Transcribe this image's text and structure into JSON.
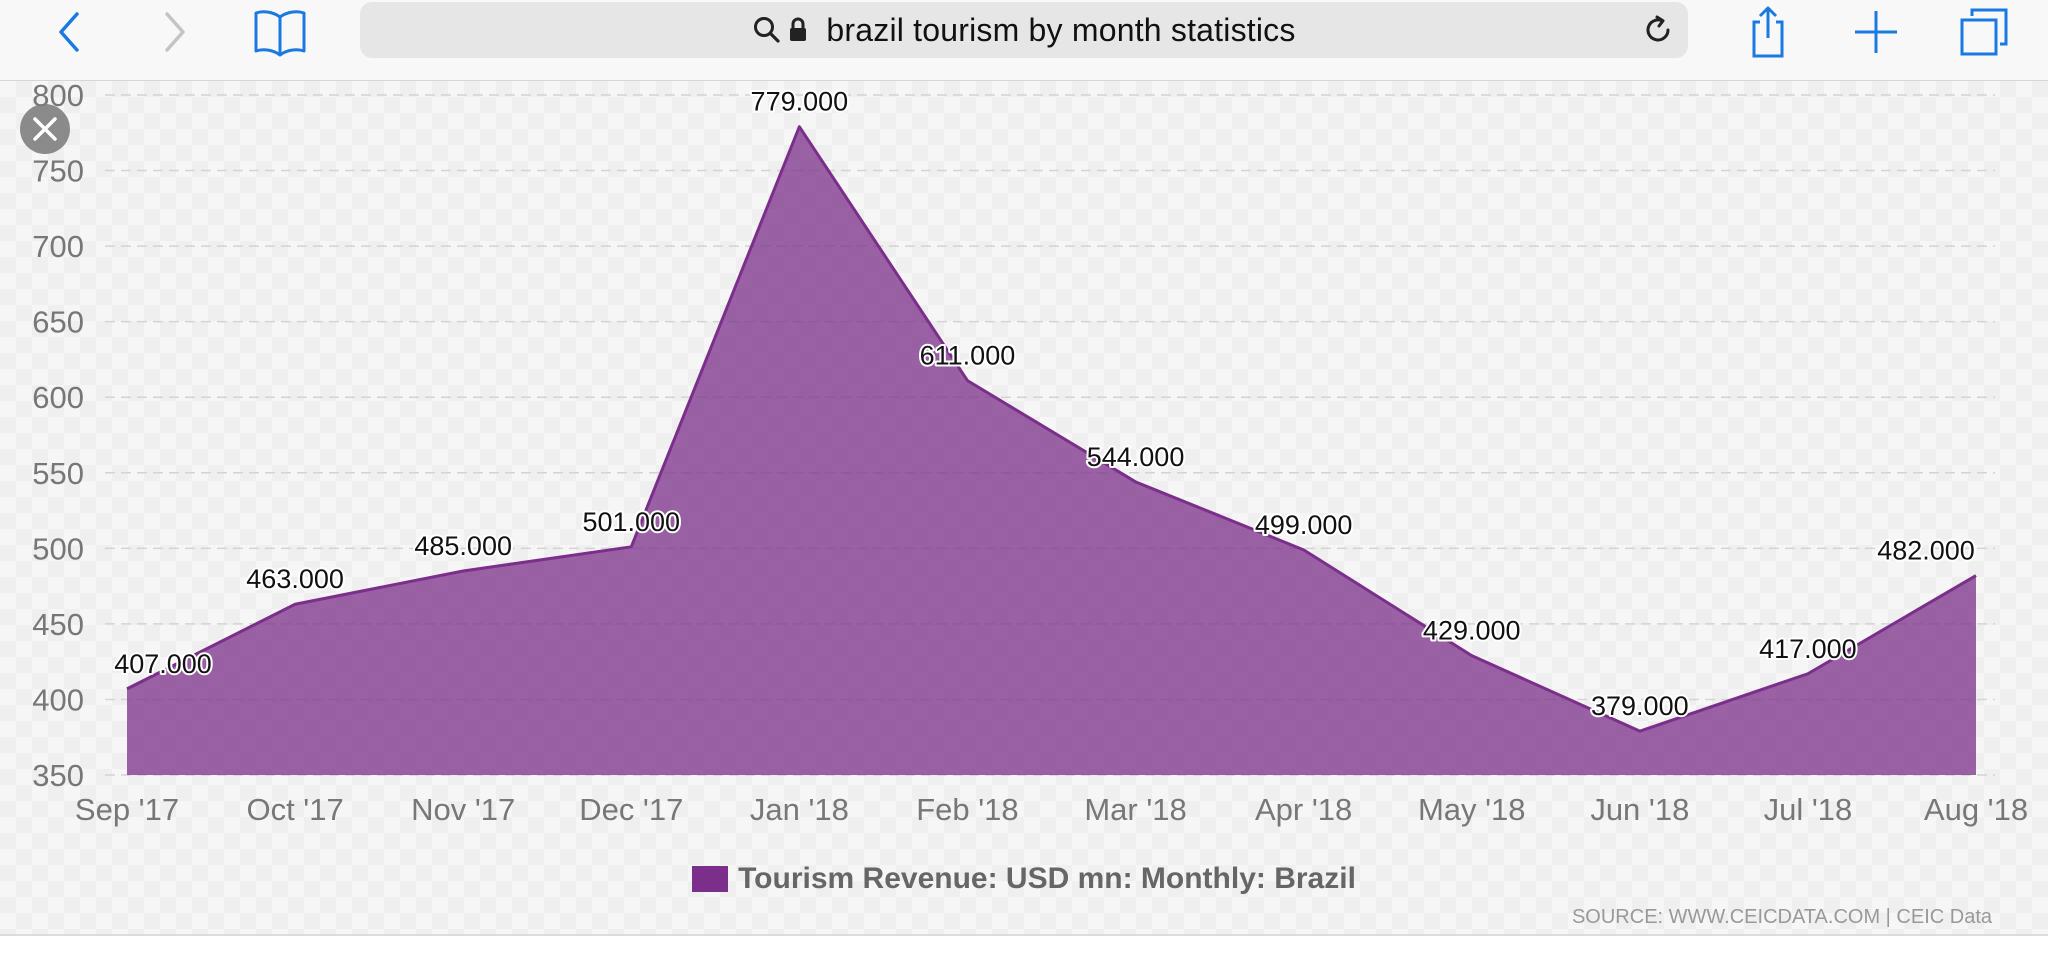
{
  "browser": {
    "address_text": "brazil tourism by month statistics",
    "icons": {
      "back": "chevron-left-icon",
      "forward": "chevron-right-icon",
      "bookmarks": "book-icon",
      "search": "search-icon",
      "lock": "lock-icon",
      "reload": "reload-icon",
      "share": "share-icon",
      "new_tab": "plus-icon",
      "tabs": "tabs-icon",
      "close": "close-icon"
    },
    "accent_color": "#1a7ae0"
  },
  "chart_data": {
    "type": "area",
    "categories": [
      "Sep '17",
      "Oct '17",
      "Nov '17",
      "Dec '17",
      "Jan '18",
      "Feb '18",
      "Mar '18",
      "Apr '18",
      "May '18",
      "Jun '18",
      "Jul '18",
      "Aug '18"
    ],
    "series": [
      {
        "name": "Tourism Revenue: USD mn: Monthly: Brazil",
        "values": [
          407.0,
          463.0,
          485.0,
          501.0,
          779.0,
          611.0,
          544.0,
          499.0,
          429.0,
          379.0,
          417.0,
          482.0
        ],
        "labels": [
          "407.000",
          "463.000",
          "485.000",
          "501.000",
          "779.000",
          "611.000",
          "544.000",
          "499.000",
          "429.000",
          "379.000",
          "417.000",
          "482.000"
        ],
        "color": "#7b2f8a"
      }
    ],
    "y_ticks": [
      "350",
      "400",
      "450",
      "500",
      "550",
      "600",
      "650",
      "700",
      "750",
      "800"
    ],
    "ylim": [
      350,
      800
    ],
    "grid": true,
    "legend_position": "bottom-center",
    "source": "SOURCE: WWW.CEICDATA.COM | CEIC Data"
  }
}
